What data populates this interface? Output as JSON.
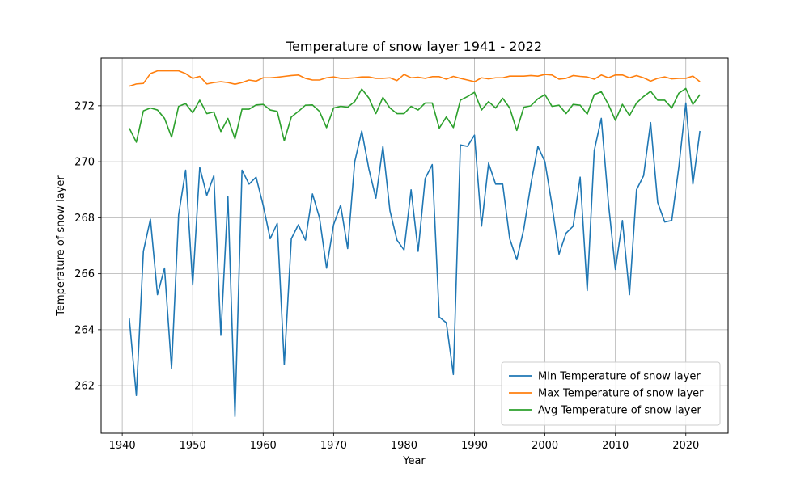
{
  "chart_data": {
    "type": "line",
    "title": "Temperature of snow layer 1941 - 2022",
    "xlabel": "Year",
    "ylabel": "Temperature of snow layer",
    "xlim": [
      1937.0,
      2026.0
    ],
    "ylim": [
      260.3,
      273.7
    ],
    "xticks": [
      1940,
      1950,
      1960,
      1970,
      1980,
      1990,
      2000,
      2010,
      2020
    ],
    "yticks": [
      262,
      264,
      266,
      268,
      270,
      272
    ],
    "grid": true,
    "legend_position": "lower-right",
    "x": [
      1941,
      1942,
      1943,
      1944,
      1945,
      1946,
      1947,
      1948,
      1949,
      1950,
      1951,
      1952,
      1953,
      1954,
      1955,
      1956,
      1957,
      1958,
      1959,
      1960,
      1961,
      1962,
      1963,
      1964,
      1965,
      1966,
      1967,
      1968,
      1969,
      1970,
      1971,
      1972,
      1973,
      1974,
      1975,
      1976,
      1977,
      1978,
      1979,
      1980,
      1981,
      1982,
      1983,
      1984,
      1985,
      1986,
      1987,
      1988,
      1989,
      1990,
      1991,
      1992,
      1993,
      1994,
      1995,
      1996,
      1997,
      1998,
      1999,
      2000,
      2001,
      2002,
      2003,
      2004,
      2005,
      2006,
      2007,
      2008,
      2009,
      2010,
      2011,
      2012,
      2013,
      2014,
      2015,
      2016,
      2017,
      2018,
      2019,
      2020,
      2021,
      2022
    ],
    "series": [
      {
        "name": "Min Temperature of snow layer",
        "color": "#1f77b4",
        "values": [
          264.4,
          261.65,
          266.8,
          267.95,
          265.25,
          266.2,
          262.6,
          268.1,
          269.7,
          265.6,
          269.8,
          268.8,
          269.5,
          263.8,
          268.75,
          260.9,
          269.7,
          269.2,
          269.45,
          268.45,
          267.25,
          267.8,
          262.75,
          267.25,
          267.75,
          267.2,
          268.85,
          268.0,
          266.2,
          267.75,
          268.45,
          266.9,
          270.0,
          271.1,
          269.75,
          268.7,
          270.55,
          268.25,
          267.2,
          266.85,
          269.0,
          266.8,
          269.4,
          269.9,
          264.45,
          264.25,
          262.4,
          270.6,
          270.55,
          270.95,
          267.7,
          269.95,
          269.2,
          269.2,
          267.25,
          266.5,
          267.6,
          269.2,
          270.55,
          270.0,
          268.45,
          266.7,
          267.45,
          267.7,
          269.45,
          265.4,
          270.4,
          271.55,
          268.55,
          266.15,
          267.9,
          265.25,
          269.0,
          269.5,
          271.4,
          268.55,
          267.85,
          267.9,
          269.8,
          272.1,
          269.2,
          271.1
        ]
      },
      {
        "name": "Max Temperature of snow layer",
        "color": "#ff7f0e",
        "values": [
          272.7,
          272.78,
          272.8,
          273.15,
          273.25,
          273.25,
          273.25,
          273.25,
          273.15,
          272.98,
          273.05,
          272.78,
          272.83,
          272.86,
          272.83,
          272.77,
          272.83,
          272.92,
          272.88,
          273.0,
          273.0,
          273.02,
          273.05,
          273.08,
          273.1,
          272.98,
          272.92,
          272.92,
          273.0,
          273.03,
          272.98,
          272.98,
          273.0,
          273.03,
          273.03,
          272.98,
          272.98,
          273.0,
          272.9,
          273.12,
          273.0,
          273.02,
          272.98,
          273.04,
          273.04,
          272.95,
          273.05,
          272.98,
          272.92,
          272.86,
          273.0,
          272.96,
          273.0,
          273.0,
          273.06,
          273.06,
          273.06,
          273.08,
          273.06,
          273.12,
          273.1,
          272.95,
          272.98,
          273.08,
          273.05,
          273.03,
          272.95,
          273.1,
          273.0,
          273.1,
          273.1,
          273.0,
          273.08,
          273.0,
          272.88,
          272.98,
          273.03,
          272.96,
          272.98,
          272.98,
          273.06,
          272.86
        ]
      },
      {
        "name": "Avg Temperature of snow layer",
        "color": "#2ca02c",
        "values": [
          271.2,
          270.7,
          271.82,
          271.92,
          271.85,
          271.55,
          270.88,
          271.98,
          272.08,
          271.75,
          272.2,
          271.72,
          271.78,
          271.08,
          271.55,
          270.82,
          271.88,
          271.88,
          272.03,
          272.05,
          271.85,
          271.8,
          270.75,
          271.6,
          271.8,
          272.02,
          272.03,
          271.8,
          271.22,
          271.92,
          271.98,
          271.95,
          272.15,
          272.6,
          272.28,
          271.72,
          272.3,
          271.92,
          271.72,
          271.72,
          271.98,
          271.85,
          272.1,
          272.1,
          271.2,
          271.6,
          271.22,
          272.2,
          272.33,
          272.48,
          271.85,
          272.15,
          271.92,
          272.27,
          271.92,
          271.12,
          271.95,
          272.0,
          272.25,
          272.4,
          271.98,
          272.02,
          271.72,
          272.05,
          272.02,
          271.7,
          272.4,
          272.5,
          272.05,
          271.48,
          272.05,
          271.65,
          272.1,
          272.33,
          272.52,
          272.2,
          272.2,
          271.92,
          272.45,
          272.62,
          272.05,
          272.4
        ]
      }
    ]
  }
}
